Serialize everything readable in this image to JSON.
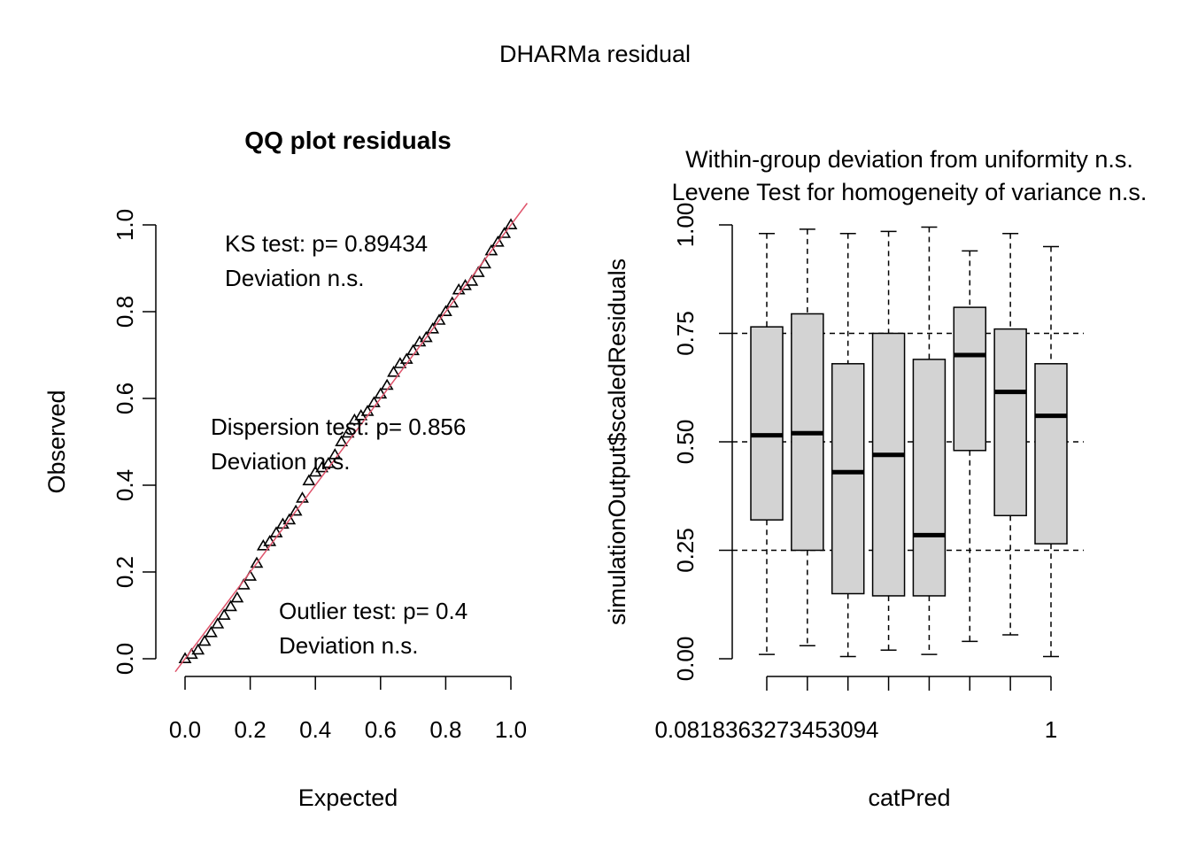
{
  "page": {
    "super_title": "DHARMa residual"
  },
  "qq_panel": {
    "title": "QQ plot residuals",
    "xlabel": "Expected",
    "ylabel": "Observed",
    "x_ticks": [
      "0.0",
      "0.2",
      "0.4",
      "0.6",
      "0.8",
      "1.0"
    ],
    "y_ticks": [
      "0.0",
      "0.2",
      "0.4",
      "0.6",
      "0.8",
      "1.0"
    ],
    "ks_line1": "KS test: p= 0.89434",
    "ks_line2": "Deviation  n.s.",
    "disp_line1": "Dispersion test: p= 0.856",
    "disp_line2": "Deviation  n.s.",
    "out_line1": "Outlier test: p= 0.4",
    "out_line2": "Deviation  n.s.",
    "colors": {
      "points": "#000000",
      "reference_line": "#DF536B"
    }
  },
  "box_panel": {
    "title_line1": "Within-group deviation from uniformity n.s.",
    "title_line2": "Levene Test for homogeneity of variance n.s.",
    "xlabel": "catPred",
    "ylabel": "simulationOutput$scaledResiduals",
    "y_ticks": [
      "0.00",
      "0.25",
      "0.50",
      "0.75",
      "1.00"
    ],
    "x_tick_first": "0.0818363273453094",
    "x_tick_last": "1",
    "colors": {
      "box_fill": "#D3D3D3",
      "box_stroke": "#000000"
    }
  },
  "chart_data": [
    {
      "type": "scatter",
      "title": "QQ plot residuals",
      "xlabel": "Expected",
      "ylabel": "Observed",
      "xlim": [
        0,
        1
      ],
      "ylim": [
        0,
        1
      ],
      "reference_line": {
        "intercept": 0,
        "slope": 1
      },
      "points": [
        [
          0.0,
          0.0
        ],
        [
          0.02,
          0.01
        ],
        [
          0.04,
          0.02
        ],
        [
          0.06,
          0.04
        ],
        [
          0.08,
          0.06
        ],
        [
          0.1,
          0.08
        ],
        [
          0.12,
          0.1
        ],
        [
          0.14,
          0.12
        ],
        [
          0.16,
          0.14
        ],
        [
          0.18,
          0.17
        ],
        [
          0.2,
          0.19
        ],
        [
          0.22,
          0.22
        ],
        [
          0.24,
          0.26
        ],
        [
          0.26,
          0.27
        ],
        [
          0.28,
          0.29
        ],
        [
          0.3,
          0.31
        ],
        [
          0.32,
          0.32
        ],
        [
          0.34,
          0.34
        ],
        [
          0.36,
          0.37
        ],
        [
          0.38,
          0.41
        ],
        [
          0.4,
          0.43
        ],
        [
          0.42,
          0.44
        ],
        [
          0.44,
          0.45
        ],
        [
          0.46,
          0.47
        ],
        [
          0.48,
          0.5
        ],
        [
          0.5,
          0.52
        ],
        [
          0.52,
          0.55
        ],
        [
          0.54,
          0.56
        ],
        [
          0.56,
          0.57
        ],
        [
          0.58,
          0.59
        ],
        [
          0.6,
          0.61
        ],
        [
          0.62,
          0.63
        ],
        [
          0.64,
          0.66
        ],
        [
          0.66,
          0.68
        ],
        [
          0.68,
          0.69
        ],
        [
          0.7,
          0.71
        ],
        [
          0.72,
          0.73
        ],
        [
          0.74,
          0.74
        ],
        [
          0.76,
          0.76
        ],
        [
          0.78,
          0.78
        ],
        [
          0.8,
          0.8
        ],
        [
          0.82,
          0.82
        ],
        [
          0.84,
          0.85
        ],
        [
          0.86,
          0.86
        ],
        [
          0.88,
          0.87
        ],
        [
          0.9,
          0.89
        ],
        [
          0.92,
          0.91
        ],
        [
          0.94,
          0.94
        ],
        [
          0.96,
          0.96
        ],
        [
          0.98,
          0.98
        ],
        [
          1.0,
          1.0
        ]
      ]
    },
    {
      "type": "boxplot",
      "title": "Within-group deviation from uniformity n.s.",
      "subtitle": "Levene Test for homogeneity of variance n.s.",
      "xlabel": "catPred",
      "ylabel": "simulationOutput$scaledResiduals",
      "ylim": [
        0,
        1
      ],
      "reference_lines": [
        0.25,
        0.5,
        0.75
      ],
      "x_tick_labels": [
        "0.0818363273453094",
        "1"
      ],
      "groups": [
        {
          "whisker_low": 0.01,
          "q1": 0.32,
          "median": 0.515,
          "q3": 0.765,
          "whisker_high": 0.98
        },
        {
          "whisker_low": 0.03,
          "q1": 0.25,
          "median": 0.52,
          "q3": 0.795,
          "whisker_high": 0.99
        },
        {
          "whisker_low": 0.005,
          "q1": 0.15,
          "median": 0.43,
          "q3": 0.68,
          "whisker_high": 0.98
        },
        {
          "whisker_low": 0.02,
          "q1": 0.145,
          "median": 0.47,
          "q3": 0.75,
          "whisker_high": 0.985
        },
        {
          "whisker_low": 0.01,
          "q1": 0.145,
          "median": 0.285,
          "q3": 0.69,
          "whisker_high": 0.995
        },
        {
          "whisker_low": 0.04,
          "q1": 0.48,
          "median": 0.7,
          "q3": 0.81,
          "whisker_high": 0.94
        },
        {
          "whisker_low": 0.055,
          "q1": 0.33,
          "median": 0.615,
          "q3": 0.76,
          "whisker_high": 0.98
        },
        {
          "whisker_low": 0.005,
          "q1": 0.265,
          "median": 0.56,
          "q3": 0.68,
          "whisker_high": 0.95
        }
      ]
    }
  ]
}
